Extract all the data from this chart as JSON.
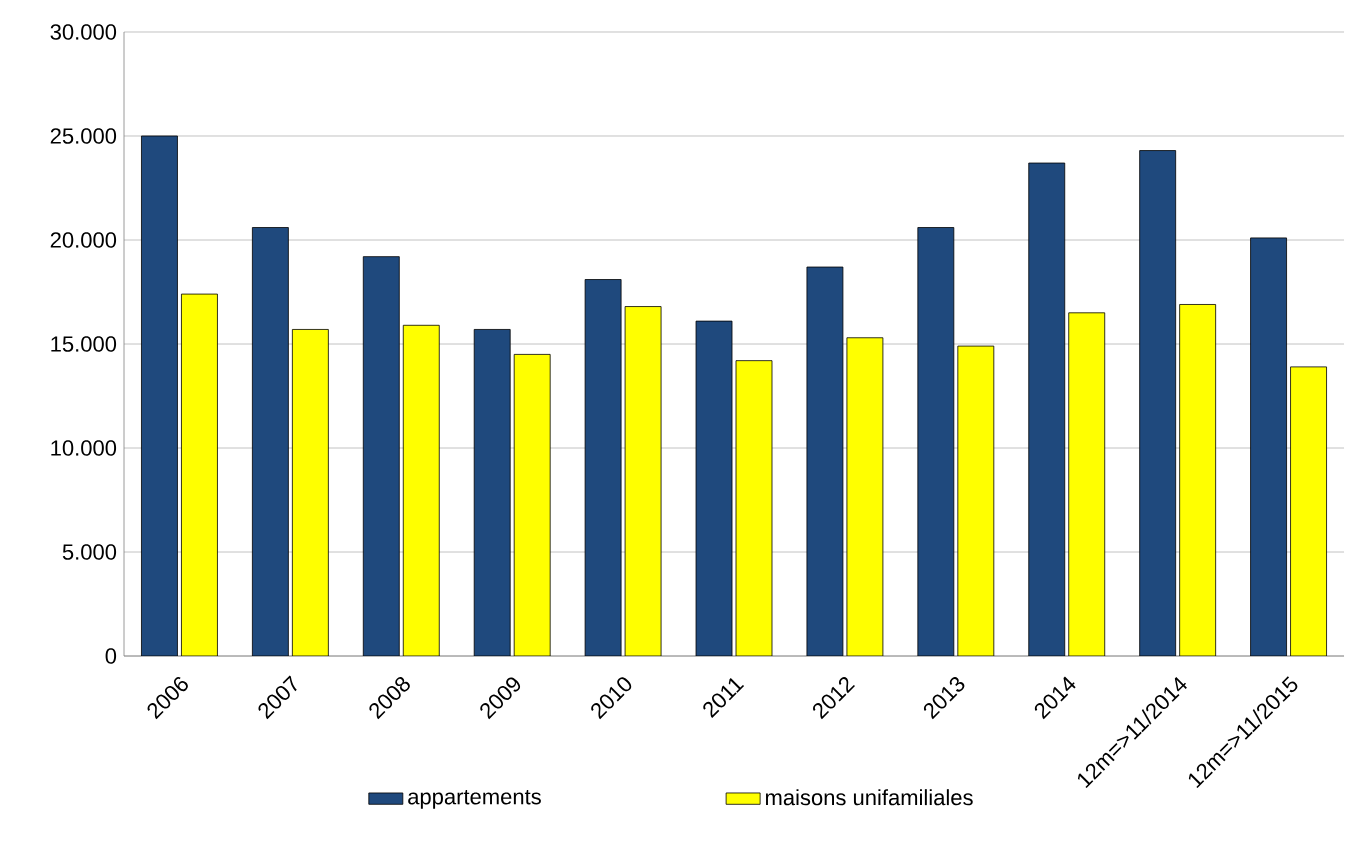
{
  "chart_data": {
    "type": "bar",
    "categories": [
      "2006",
      "2007",
      "2008",
      "2009",
      "2010",
      "2011",
      "2012",
      "2013",
      "2014",
      "12m=>11/2014",
      "12m=>11/2015"
    ],
    "series": [
      {
        "name": "appartements",
        "color": "#1f497d",
        "values": [
          25000,
          20600,
          19200,
          15700,
          18100,
          16100,
          18700,
          20600,
          23700,
          24300,
          20100
        ]
      },
      {
        "name": "maisons unifamiliales",
        "color": "#ffff00",
        "values": [
          17400,
          15700,
          15900,
          14500,
          16800,
          14200,
          15300,
          14900,
          16500,
          16900,
          13900
        ]
      }
    ],
    "ylim": [
      0,
      30000
    ],
    "yticks": [
      {
        "value": 0,
        "label": "0"
      },
      {
        "value": 5000,
        "label": "5.000"
      },
      {
        "value": 10000,
        "label": "10.000"
      },
      {
        "value": 15000,
        "label": "15.000"
      },
      {
        "value": 20000,
        "label": "20.000"
      },
      {
        "value": 25000,
        "label": "25.000"
      },
      {
        "value": 30000,
        "label": "30.000"
      }
    ],
    "grid": "y",
    "legend": "bottom"
  }
}
